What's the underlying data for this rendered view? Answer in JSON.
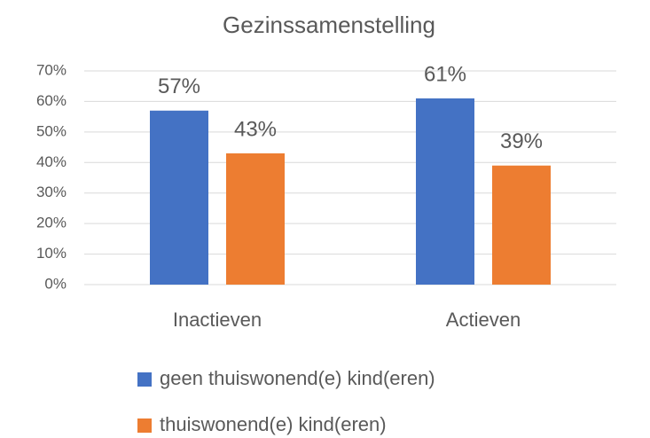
{
  "chart_data": {
    "type": "bar",
    "title": "Gezinssamenstelling",
    "categories": [
      "Inactieven",
      "Actieven"
    ],
    "series": [
      {
        "name": "geen thuiswonend(e) kind(eren)",
        "color": "#4472c4",
        "values": [
          57,
          61
        ],
        "value_labels": [
          "57%",
          "61%"
        ]
      },
      {
        "name": "thuiswonend(e) kind(eren)",
        "color": "#ed7d31",
        "values": [
          43,
          39
        ],
        "value_labels": [
          "43%",
          "39%"
        ]
      }
    ],
    "ylim": [
      0,
      70
    ],
    "yticks": [
      {
        "value": 0,
        "label": "0%"
      },
      {
        "value": 10,
        "label": "10%"
      },
      {
        "value": 20,
        "label": "20%"
      },
      {
        "value": 30,
        "label": "30%"
      },
      {
        "value": 40,
        "label": "40%"
      },
      {
        "value": 50,
        "label": "50%"
      },
      {
        "value": 60,
        "label": "60%"
      },
      {
        "value": 70,
        "label": "70%"
      }
    ],
    "grid": true,
    "legend": "bottom"
  }
}
